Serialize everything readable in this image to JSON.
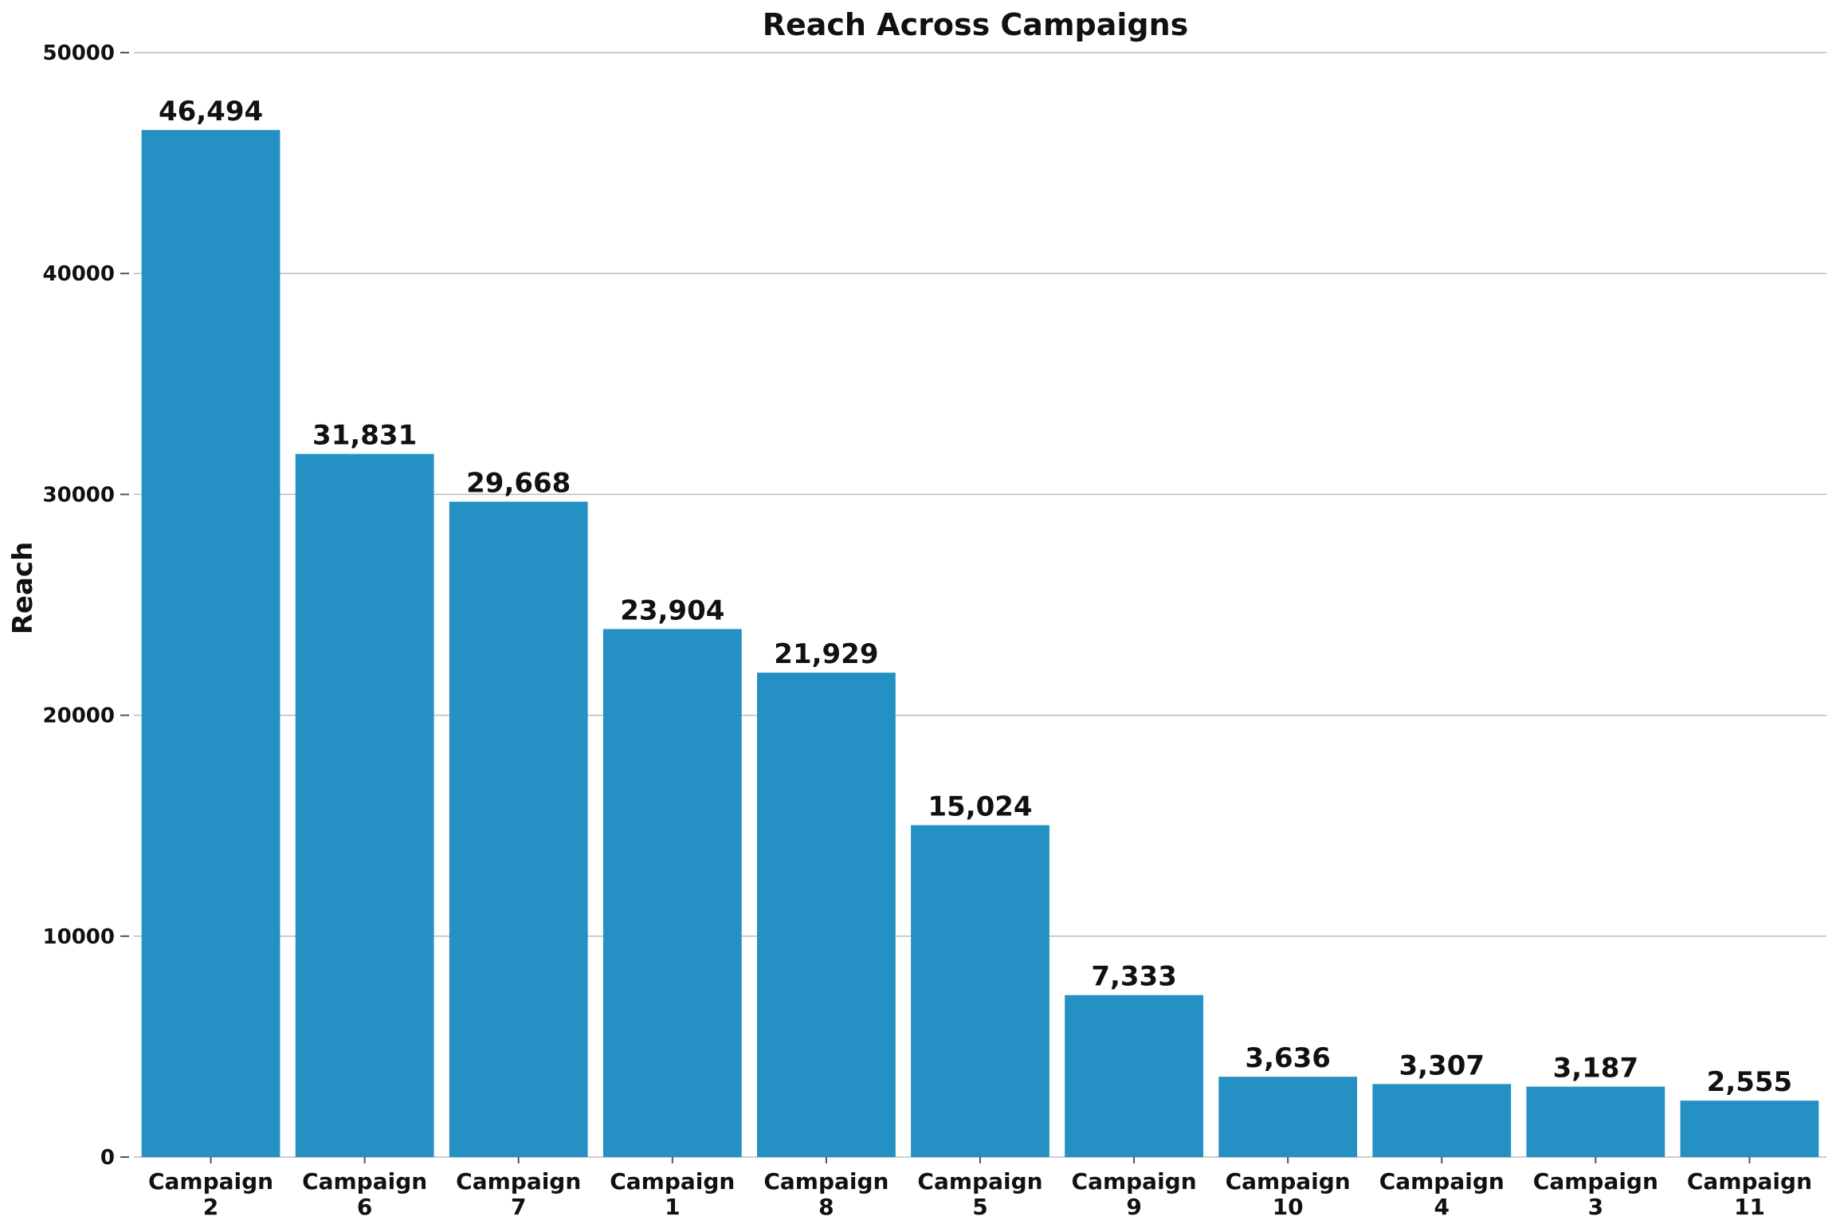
{
  "chart_data": {
    "type": "bar",
    "title": "Reach Across Campaigns",
    "xlabel": "",
    "ylabel": "Reach",
    "ylim": [
      0,
      50000
    ],
    "yticks": [
      {
        "value": 0,
        "label": "0"
      },
      {
        "value": 10000,
        "label": "10000"
      },
      {
        "value": 20000,
        "label": "20000"
      },
      {
        "value": 30000,
        "label": "30000"
      },
      {
        "value": 40000,
        "label": "40000"
      },
      {
        "value": 50000,
        "label": "50000"
      }
    ],
    "grid": true,
    "legend": "none",
    "bar_color": "#2490c3",
    "categories": [
      "Campaign 2",
      "Campaign 6",
      "Campaign 7",
      "Campaign 1",
      "Campaign 8",
      "Campaign 5",
      "Campaign 9",
      "Campaign 10",
      "Campaign 4",
      "Campaign 3",
      "Campaign 11"
    ],
    "category_lines": [
      [
        "Campaign",
        "2"
      ],
      [
        "Campaign",
        "6"
      ],
      [
        "Campaign",
        "7"
      ],
      [
        "Campaign",
        "1"
      ],
      [
        "Campaign",
        "8"
      ],
      [
        "Campaign",
        "5"
      ],
      [
        "Campaign",
        "9"
      ],
      [
        "Campaign",
        "10"
      ],
      [
        "Campaign",
        "4"
      ],
      [
        "Campaign",
        "3"
      ],
      [
        "Campaign",
        "11"
      ]
    ],
    "values": [
      46494,
      31831,
      29668,
      23904,
      21929,
      15024,
      7333,
      3636,
      3307,
      3187,
      2555
    ],
    "value_labels": [
      "46,494",
      "31,831",
      "29,668",
      "23,904",
      "21,929",
      "15,024",
      "7,333",
      "3,636",
      "3,307",
      "3,187",
      "2,555"
    ]
  }
}
